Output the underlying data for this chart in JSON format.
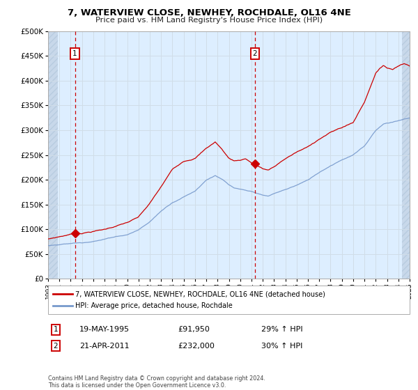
{
  "title": "7, WATERVIEW CLOSE, NEWHEY, ROCHDALE, OL16 4NE",
  "subtitle": "Price paid vs. HM Land Registry's House Price Index (HPI)",
  "red_label": "7, WATERVIEW CLOSE, NEWHEY, ROCHDALE, OL16 4NE (detached house)",
  "blue_label": "HPI: Average price, detached house, Rochdale",
  "annotation1_date": "19-MAY-1995",
  "annotation1_price": "£91,950",
  "annotation1_hpi": "29% ↑ HPI",
  "annotation2_date": "21-APR-2011",
  "annotation2_price": "£232,000",
  "annotation2_hpi": "30% ↑ HPI",
  "footnote": "Contains HM Land Registry data © Crown copyright and database right 2024.\nThis data is licensed under the Open Government Licence v3.0.",
  "ylim": [
    0,
    500000
  ],
  "yticks": [
    0,
    50000,
    100000,
    150000,
    200000,
    250000,
    300000,
    350000,
    400000,
    450000,
    500000
  ],
  "plot_bg": "#ddeeff",
  "grid_color": "#e8e8e8",
  "red_color": "#cc0000",
  "blue_color": "#7799cc",
  "marker1_x": 1995.38,
  "marker1_y": 91950,
  "marker2_x": 2011.31,
  "marker2_y": 232000,
  "vline1_x": 1995.38,
  "vline2_x": 2011.31,
  "xmin": 1993,
  "xmax": 2025
}
